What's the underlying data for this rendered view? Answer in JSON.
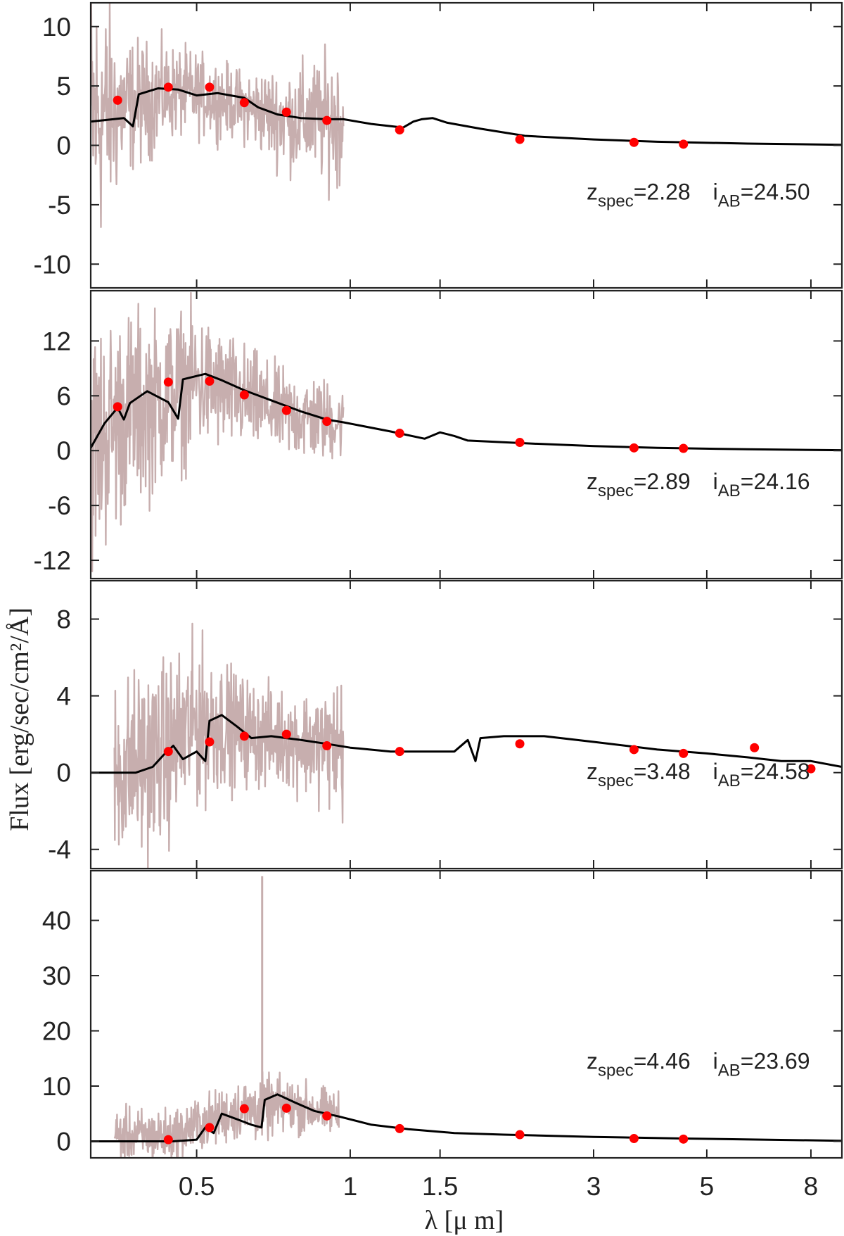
{
  "chart_data": {
    "type": "line",
    "ylabel": "Flux [erg/sec/cm²/Å]",
    "xlabel": "λ [μ m]",
    "x_scale": "log",
    "xlim": [
      0.31,
      9.2
    ],
    "x_tick_labels": [
      "0.5",
      "1",
      "1.5",
      "3",
      "5",
      "8"
    ],
    "x_tick_values": [
      0.5,
      1.0,
      1.5,
      3.0,
      5.0,
      8.0
    ],
    "colors": {
      "spectrum": "#c7aeae",
      "model": "#000000",
      "photometry": "#ff0000"
    },
    "panels": [
      {
        "annotation": {
          "z_label": "z",
          "z_sub": "spec",
          "z_value": "=2.28",
          "i_label": "i",
          "i_sub": "AB",
          "i_value": "=24.50"
        },
        "ylim": [
          -12,
          12
        ],
        "y_ticks": [
          10,
          5,
          0,
          -5,
          -10
        ],
        "y_tick_labels": [
          "10",
          "5",
          "0",
          "-5",
          "-10"
        ],
        "spectrum": {
          "x_range": [
            0.31,
            0.97
          ],
          "center": [
            [
              0.31,
              2.2
            ],
            [
              0.38,
              3.5
            ],
            [
              0.45,
              4.5
            ],
            [
              0.55,
              4.0
            ],
            [
              0.65,
              3.0
            ],
            [
              0.75,
              2.2
            ],
            [
              0.85,
              2.2
            ],
            [
              0.97,
              2.2
            ]
          ],
          "amplitude": [
            [
              0.31,
              13
            ],
            [
              0.36,
              6
            ],
            [
              0.45,
              4
            ],
            [
              0.6,
              3
            ],
            [
              0.7,
              4
            ],
            [
              0.82,
              5
            ],
            [
              0.97,
              6
            ]
          ]
        },
        "model": [
          [
            0.31,
            2.0
          ],
          [
            0.36,
            2.3
          ],
          [
            0.375,
            1.6
          ],
          [
            0.385,
            4.3
          ],
          [
            0.42,
            4.8
          ],
          [
            0.46,
            4.7
          ],
          [
            0.5,
            4.2
          ],
          [
            0.55,
            4.4
          ],
          [
            0.62,
            4.0
          ],
          [
            0.66,
            3.2
          ],
          [
            0.72,
            2.6
          ],
          [
            0.8,
            2.3
          ],
          [
            0.9,
            2.2
          ],
          [
            0.97,
            2.2
          ],
          [
            1.1,
            1.8
          ],
          [
            1.27,
            1.5
          ],
          [
            1.33,
            2.0
          ],
          [
            1.38,
            2.2
          ],
          [
            1.45,
            2.3
          ],
          [
            1.55,
            1.9
          ],
          [
            1.8,
            1.4
          ],
          [
            2.2,
            0.8
          ],
          [
            3.0,
            0.5
          ],
          [
            4.0,
            0.3
          ],
          [
            6.0,
            0.15
          ],
          [
            9.2,
            0.05
          ]
        ],
        "photometry": [
          [
            0.35,
            3.8
          ],
          [
            0.44,
            4.9
          ],
          [
            0.53,
            4.9
          ],
          [
            0.62,
            3.6
          ],
          [
            0.75,
            2.8
          ],
          [
            0.9,
            2.1
          ],
          [
            1.25,
            1.3
          ],
          [
            2.15,
            0.5
          ],
          [
            3.6,
            0.25
          ],
          [
            4.5,
            0.1
          ]
        ]
      },
      {
        "annotation": {
          "z_label": "z",
          "z_sub": "spec",
          "z_value": "=2.89",
          "i_label": "i",
          "i_sub": "AB",
          "i_value": "=24.16"
        },
        "ylim": [
          -14,
          17.5
        ],
        "y_ticks": [
          12,
          6,
          0,
          -6,
          -12
        ],
        "y_tick_labels": [
          "12",
          "6",
          "0",
          "-6",
          "-12"
        ],
        "spectrum": {
          "x_range": [
            0.31,
            0.97
          ],
          "center": [
            [
              0.31,
              0.3
            ],
            [
              0.36,
              4.0
            ],
            [
              0.42,
              5.5
            ],
            [
              0.5,
              7.5
            ],
            [
              0.6,
              6.0
            ],
            [
              0.75,
              4.0
            ],
            [
              0.97,
              3.0
            ]
          ],
          "amplitude": [
            [
              0.31,
              14
            ],
            [
              0.35,
              12
            ],
            [
              0.42,
              10
            ],
            [
              0.55,
              7
            ],
            [
              0.7,
              5
            ],
            [
              0.85,
              5
            ],
            [
              0.97,
              4
            ]
          ]
        },
        "model": [
          [
            0.31,
            0.3
          ],
          [
            0.33,
            3.0
          ],
          [
            0.35,
            4.7
          ],
          [
            0.36,
            3.4
          ],
          [
            0.37,
            5.2
          ],
          [
            0.4,
            6.5
          ],
          [
            0.44,
            5.3
          ],
          [
            0.46,
            3.5
          ],
          [
            0.47,
            7.8
          ],
          [
            0.52,
            8.4
          ],
          [
            0.56,
            7.7
          ],
          [
            0.62,
            6.6
          ],
          [
            0.7,
            5.5
          ],
          [
            0.8,
            4.3
          ],
          [
            0.9,
            3.4
          ],
          [
            0.97,
            3.1
          ],
          [
            1.2,
            2.1
          ],
          [
            1.4,
            1.3
          ],
          [
            1.5,
            2.0
          ],
          [
            1.6,
            1.6
          ],
          [
            1.7,
            1.1
          ],
          [
            2.2,
            0.8
          ],
          [
            3.0,
            0.5
          ],
          [
            4.0,
            0.3
          ],
          [
            6.0,
            0.15
          ],
          [
            9.2,
            0.05
          ]
        ],
        "photometry": [
          [
            0.35,
            4.8
          ],
          [
            0.44,
            7.5
          ],
          [
            0.53,
            7.6
          ],
          [
            0.62,
            6.1
          ],
          [
            0.75,
            4.4
          ],
          [
            0.9,
            3.2
          ],
          [
            1.25,
            1.9
          ],
          [
            2.15,
            0.9
          ],
          [
            3.6,
            0.3
          ],
          [
            4.5,
            0.25
          ]
        ]
      },
      {
        "annotation": {
          "z_label": "z",
          "z_sub": "spec",
          "z_value": "=3.48",
          "i_label": "i",
          "i_sub": "AB",
          "i_value": "=24.58"
        },
        "ylim": [
          -5,
          10
        ],
        "y_ticks": [
          8,
          4,
          0,
          -4
        ],
        "y_tick_labels": [
          "8",
          "4",
          "0",
          "-4"
        ],
        "spectrum": {
          "x_range": [
            0.345,
            0.97
          ],
          "center": [
            [
              0.345,
              0.0
            ],
            [
              0.4,
              0.6
            ],
            [
              0.44,
              1.2
            ],
            [
              0.5,
              2.6
            ],
            [
              0.56,
              2.5
            ],
            [
              0.65,
              2.0
            ],
            [
              0.8,
              1.6
            ],
            [
              0.97,
              1.3
            ]
          ],
          "amplitude": [
            [
              0.345,
              5
            ],
            [
              0.4,
              5
            ],
            [
              0.5,
              4.5
            ],
            [
              0.6,
              3
            ],
            [
              0.75,
              2.5
            ],
            [
              0.88,
              3
            ],
            [
              0.97,
              4
            ]
          ]
        },
        "model": [
          [
            0.31,
            0.0
          ],
          [
            0.38,
            0.0
          ],
          [
            0.41,
            0.3
          ],
          [
            0.43,
            0.9
          ],
          [
            0.45,
            1.4
          ],
          [
            0.47,
            0.7
          ],
          [
            0.5,
            1.1
          ],
          [
            0.52,
            0.6
          ],
          [
            0.53,
            2.7
          ],
          [
            0.56,
            3.0
          ],
          [
            0.6,
            2.4
          ],
          [
            0.64,
            1.8
          ],
          [
            0.7,
            1.9
          ],
          [
            0.8,
            1.7
          ],
          [
            0.9,
            1.5
          ],
          [
            1.0,
            1.3
          ],
          [
            1.2,
            1.1
          ],
          [
            1.4,
            1.1
          ],
          [
            1.6,
            1.1
          ],
          [
            1.7,
            1.7
          ],
          [
            1.76,
            0.6
          ],
          [
            1.8,
            1.8
          ],
          [
            2.0,
            1.9
          ],
          [
            2.4,
            1.9
          ],
          [
            3.0,
            1.6
          ],
          [
            4.0,
            1.2
          ],
          [
            5.0,
            1.0
          ],
          [
            6.0,
            0.8
          ],
          [
            7.0,
            0.6
          ],
          [
            8.0,
            0.6
          ],
          [
            9.2,
            0.3
          ]
        ],
        "photometry": [
          [
            0.44,
            1.1
          ],
          [
            0.53,
            1.6
          ],
          [
            0.62,
            1.9
          ],
          [
            0.75,
            2.0
          ],
          [
            0.9,
            1.4
          ],
          [
            1.25,
            1.1
          ],
          [
            2.15,
            1.5
          ],
          [
            3.6,
            1.2
          ],
          [
            4.5,
            1.0
          ],
          [
            6.2,
            1.3
          ],
          [
            8.0,
            0.2
          ]
        ]
      },
      {
        "annotation": {
          "z_label": "z",
          "z_sub": "spec",
          "z_value": "=4.46",
          "i_label": "i",
          "i_sub": "AB",
          "i_value": "=23.69"
        },
        "ylim": [
          -3,
          49
        ],
        "y_ticks": [
          40,
          30,
          20,
          10,
          0
        ],
        "y_tick_labels": [
          "40",
          "30",
          "20",
          "10",
          "0"
        ],
        "spectrum": {
          "x_range": [
            0.345,
            0.95
          ],
          "center": [
            [
              0.345,
              1.0
            ],
            [
              0.45,
              1.0
            ],
            [
              0.5,
              3.0
            ],
            [
              0.6,
              5.5
            ],
            [
              0.68,
              6.0
            ],
            [
              0.75,
              6.5
            ],
            [
              0.95,
              5.0
            ]
          ],
          "amplitude": [
            [
              0.345,
              5
            ],
            [
              0.45,
              5
            ],
            [
              0.55,
              5
            ],
            [
              0.65,
              6
            ],
            [
              0.8,
              5
            ],
            [
              0.95,
              4
            ]
          ]
        },
        "spectrum_spikes": [
          [
            0.672,
            48.0
          ]
        ],
        "model": [
          [
            0.31,
            0.0
          ],
          [
            0.45,
            0.0
          ],
          [
            0.5,
            0.3
          ],
          [
            0.52,
            2.5
          ],
          [
            0.54,
            1.5
          ],
          [
            0.56,
            5.0
          ],
          [
            0.6,
            4.0
          ],
          [
            0.64,
            3.0
          ],
          [
            0.67,
            2.5
          ],
          [
            0.68,
            7.5
          ],
          [
            0.72,
            8.5
          ],
          [
            0.78,
            7.0
          ],
          [
            0.85,
            5.5
          ],
          [
            0.95,
            4.5
          ],
          [
            1.1,
            3.0
          ],
          [
            1.3,
            2.2
          ],
          [
            1.6,
            1.5
          ],
          [
            2.0,
            1.2
          ],
          [
            3.0,
            0.8
          ],
          [
            4.5,
            0.5
          ],
          [
            9.2,
            0.1
          ]
        ],
        "photometry": [
          [
            0.44,
            0.3
          ],
          [
            0.53,
            2.5
          ],
          [
            0.62,
            5.9
          ],
          [
            0.75,
            6.0
          ],
          [
            0.9,
            4.6
          ],
          [
            1.25,
            2.3
          ],
          [
            2.15,
            1.2
          ],
          [
            3.6,
            0.5
          ],
          [
            4.5,
            0.4
          ]
        ]
      }
    ]
  }
}
